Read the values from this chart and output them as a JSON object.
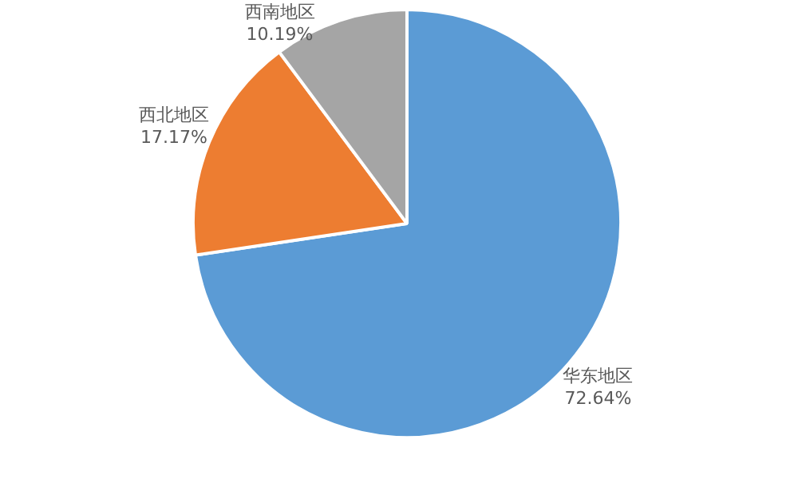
{
  "chart_data": {
    "type": "pie",
    "categories": [
      "华东地区",
      "西北地区",
      "西南地区"
    ],
    "values": [
      72.64,
      17.17,
      10.19
    ],
    "colors": [
      "#5b9bd5",
      "#ed7d31",
      "#a5a5a5"
    ],
    "value_labels": [
      "72.64%",
      "17.17%",
      "10.19%"
    ],
    "legend": false
  }
}
